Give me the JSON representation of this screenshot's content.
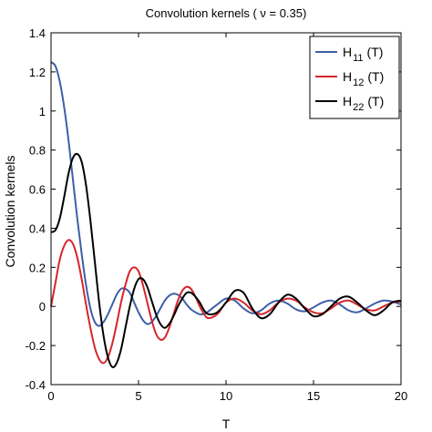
{
  "chart_data": {
    "type": "line",
    "title": "Convolution kernels ( ν = 0.35)",
    "xlabel": "T",
    "ylabel": "Convolution kernels",
    "xlim": [
      0,
      20
    ],
    "ylim": [
      -0.4,
      1.4
    ],
    "xticks": [
      0,
      5,
      10,
      15,
      20
    ],
    "yticks": [
      -0.4,
      -0.2,
      0,
      0.2,
      0.4,
      0.6,
      0.8,
      1,
      1.2,
      1.4
    ],
    "xtick_labels": [
      "0",
      "5",
      "10",
      "15",
      "20"
    ],
    "ytick_labels": [
      "-0.4",
      "-0.2",
      "0",
      "0.2",
      "0.4",
      "0.6",
      "0.8",
      "1",
      "1.2",
      "1.4"
    ],
    "grid": false,
    "legend_position": "top-right",
    "series": [
      {
        "name": "H11 (T)",
        "label_main": "H",
        "label_sub": "11",
        "label_suffix": "(T)",
        "color": "#3d5fa8",
        "x": [
          0,
          0.25,
          0.5,
          0.75,
          1.0,
          1.25,
          1.5,
          1.75,
          2.0,
          2.25,
          2.5,
          2.75,
          3.0,
          3.25,
          3.5,
          3.75,
          4.0,
          4.25,
          4.5,
          4.75,
          5.0,
          5.25,
          5.5,
          5.75,
          6.0,
          6.25,
          6.5,
          6.75,
          7.0,
          7.25,
          7.5,
          7.75,
          8.0,
          8.25,
          8.5,
          8.75,
          9.0,
          9.5,
          10.0,
          10.5,
          11.0,
          11.5,
          12.0,
          12.5,
          13.0,
          13.5,
          14.0,
          14.5,
          15.0,
          15.5,
          16.0,
          16.5,
          17.0,
          17.5,
          18.0,
          18.5,
          19.0,
          19.5,
          20.0
        ],
        "y": [
          1.25,
          1.23,
          1.15,
          1.02,
          0.85,
          0.65,
          0.45,
          0.27,
          0.11,
          -0.01,
          -0.08,
          -0.1,
          -0.08,
          -0.04,
          0.01,
          0.06,
          0.09,
          0.09,
          0.07,
          0.02,
          -0.03,
          -0.07,
          -0.09,
          -0.08,
          -0.05,
          -0.01,
          0.03,
          0.055,
          0.065,
          0.06,
          0.04,
          0.01,
          -0.015,
          -0.03,
          -0.04,
          -0.038,
          -0.025,
          0.01,
          0.04,
          0.03,
          -0.01,
          -0.035,
          -0.02,
          0.015,
          0.03,
          0.015,
          -0.015,
          -0.025,
          -0.005,
          0.02,
          0.03,
          0.01,
          -0.02,
          -0.03,
          -0.01,
          0.015,
          0.03,
          0.025,
          0.01
        ]
      },
      {
        "name": "H12 (T)",
        "label_main": "H",
        "label_sub": "12",
        "label_suffix": "(T)",
        "color": "#d6252a",
        "x": [
          0,
          0.25,
          0.5,
          0.75,
          1.0,
          1.25,
          1.5,
          1.75,
          2.0,
          2.25,
          2.5,
          2.75,
          3.0,
          3.25,
          3.5,
          3.75,
          4.0,
          4.25,
          4.5,
          4.75,
          5.0,
          5.25,
          5.5,
          5.75,
          6.0,
          6.25,
          6.5,
          6.75,
          7.0,
          7.25,
          7.5,
          7.75,
          8.0,
          8.25,
          8.5,
          8.75,
          9.0,
          9.5,
          10.0,
          10.5,
          11.0,
          11.5,
          12.0,
          12.5,
          13.0,
          13.5,
          14.0,
          14.5,
          15.0,
          15.5,
          16.0,
          16.5,
          17.0,
          17.5,
          18.0,
          18.5,
          19.0,
          19.5,
          20.0
        ],
        "y": [
          0,
          0.12,
          0.24,
          0.31,
          0.34,
          0.32,
          0.25,
          0.14,
          0.01,
          -0.11,
          -0.21,
          -0.27,
          -0.29,
          -0.26,
          -0.19,
          -0.09,
          0.02,
          0.11,
          0.18,
          0.2,
          0.18,
          0.11,
          0.02,
          -0.07,
          -0.14,
          -0.17,
          -0.16,
          -0.11,
          -0.04,
          0.03,
          0.08,
          0.1,
          0.09,
          0.05,
          0.0,
          -0.04,
          -0.06,
          -0.04,
          0.02,
          0.04,
          0.02,
          -0.02,
          -0.04,
          -0.02,
          0.02,
          0.04,
          0.03,
          -0.005,
          -0.03,
          -0.035,
          -0.01,
          0.02,
          0.03,
          0.01,
          -0.015,
          -0.02,
          0.0,
          0.02,
          0.025
        ]
      },
      {
        "name": "H22 (T)",
        "label_main": "H",
        "label_sub": "22",
        "label_suffix": "(T)",
        "color": "#000000",
        "x": [
          0,
          0.25,
          0.5,
          0.75,
          1.0,
          1.25,
          1.5,
          1.75,
          2.0,
          2.25,
          2.5,
          2.75,
          3.0,
          3.25,
          3.5,
          3.75,
          4.0,
          4.25,
          4.5,
          4.75,
          5.0,
          5.25,
          5.5,
          5.75,
          6.0,
          6.25,
          6.5,
          6.75,
          7.0,
          7.25,
          7.5,
          7.75,
          8.0,
          8.25,
          8.5,
          8.75,
          9.0,
          9.5,
          10.0,
          10.5,
          11.0,
          11.5,
          12.0,
          12.5,
          13.0,
          13.5,
          14.0,
          14.5,
          15.0,
          15.5,
          16.0,
          16.5,
          17.0,
          17.5,
          18.0,
          18.5,
          19.0,
          19.5,
          20.0
        ],
        "y": [
          0.38,
          0.39,
          0.45,
          0.56,
          0.68,
          0.76,
          0.78,
          0.74,
          0.62,
          0.44,
          0.23,
          0.02,
          -0.15,
          -0.26,
          -0.31,
          -0.29,
          -0.22,
          -0.11,
          0.0,
          0.09,
          0.14,
          0.14,
          0.1,
          0.03,
          -0.04,
          -0.09,
          -0.11,
          -0.09,
          -0.05,
          0.0,
          0.04,
          0.07,
          0.07,
          0.05,
          0.02,
          -0.02,
          -0.04,
          -0.03,
          0.02,
          0.08,
          0.07,
          -0.01,
          -0.06,
          -0.04,
          0.02,
          0.06,
          0.04,
          -0.01,
          -0.05,
          -0.04,
          0.0,
          0.04,
          0.05,
          0.02,
          -0.02,
          -0.045,
          -0.02,
          0.02,
          0.03
        ]
      }
    ]
  }
}
